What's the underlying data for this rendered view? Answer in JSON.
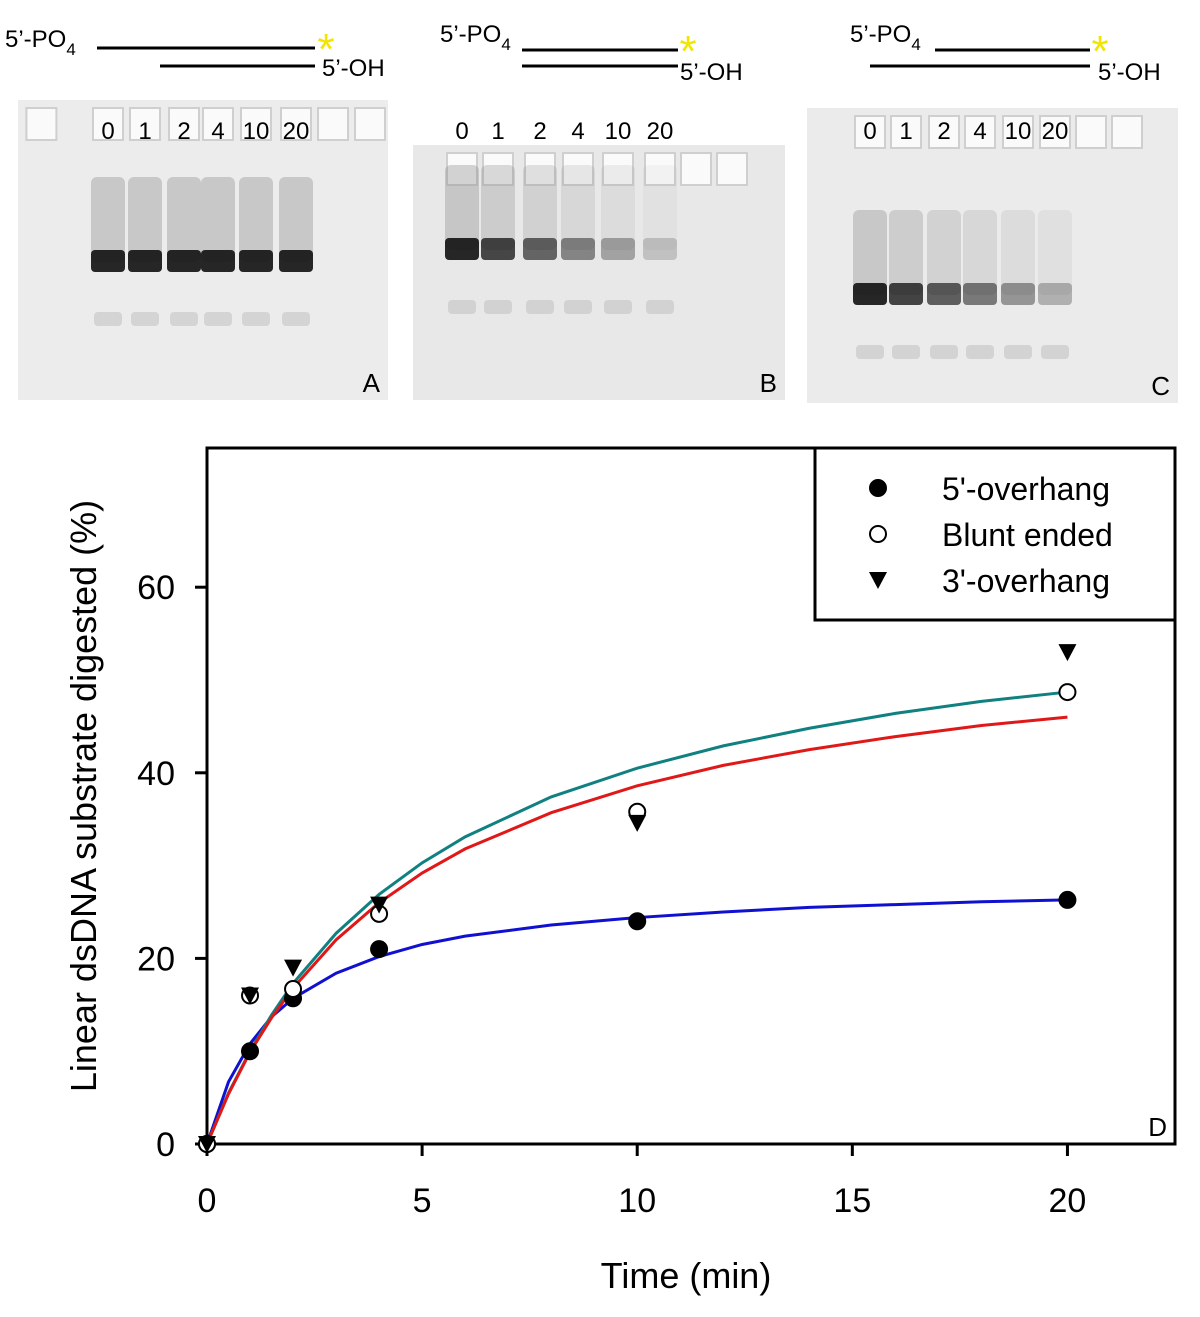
{
  "gels": [
    {
      "strand_top": "5’-PO",
      "strand_top_sub": "4",
      "strand_bottom": "5’-OH",
      "lanes": [
        "0",
        "1",
        "2",
        "4",
        "10",
        "20"
      ],
      "panel": "A"
    },
    {
      "strand_top": "5’-PO",
      "strand_top_sub": "4",
      "strand_bottom": "5’-OH",
      "lanes": [
        "0",
        "1",
        "2",
        "4",
        "10",
        "20"
      ],
      "panel": "B"
    },
    {
      "strand_top": "5’-PO",
      "strand_top_sub": "4",
      "strand_bottom": "5’-OH",
      "lanes": [
        "0",
        "1",
        "2",
        "4",
        "10",
        "20"
      ],
      "panel": "C"
    }
  ],
  "chart_data": {
    "type": "scatter",
    "panel": "D",
    "x_label": "Time (min)",
    "y_label": "Linear dsDNA substrate digested (%)",
    "x": [
      0,
      1,
      2,
      4,
      10,
      20
    ],
    "fit_x": [
      0,
      0.5,
      1,
      1.5,
      2,
      3,
      4,
      5,
      6,
      8,
      10,
      12,
      14,
      16,
      18,
      20
    ],
    "series": [
      {
        "name": "5'-overhang",
        "color": "#000000",
        "marker": "filled-circle",
        "values": [
          0,
          10,
          15.7,
          21,
          24,
          26.3
        ],
        "fit_color": "#1010d0",
        "fit_values": [
          0,
          6.7,
          10.8,
          13.7,
          15.7,
          18.4,
          20.2,
          21.5,
          22.4,
          23.6,
          24.4,
          25.0,
          25.5,
          25.8,
          26.1,
          26.3
        ]
      },
      {
        "name": "Blunt ended",
        "color": "#000000",
        "marker": "open-circle",
        "values": [
          0,
          16,
          16.7,
          24.8,
          35.8,
          48.7
        ],
        "fit_color": "#108080",
        "fit_values": [
          0,
          5.5,
          10.0,
          13.9,
          17.3,
          22.7,
          26.9,
          30.3,
          33.1,
          37.4,
          40.5,
          42.9,
          44.8,
          46.4,
          47.7,
          48.7
        ]
      },
      {
        "name": "3'-overhang",
        "color": "#000000",
        "marker": "triangle-down",
        "values": [
          0,
          16,
          19,
          25.8,
          34.6,
          53
        ],
        "fit_color": "#e01818",
        "fit_values": [
          0,
          5.4,
          9.9,
          13.6,
          16.8,
          22.0,
          26.0,
          29.2,
          31.8,
          35.7,
          38.6,
          40.8,
          42.5,
          43.9,
          45.1,
          46.0
        ]
      }
    ],
    "xlim": [
      0,
      22.5
    ],
    "ylim": [
      0,
      75
    ],
    "xticks": [
      0,
      5,
      10,
      15,
      20
    ],
    "yticks": [
      0,
      20,
      40,
      60
    ],
    "legend": "upper-right"
  }
}
